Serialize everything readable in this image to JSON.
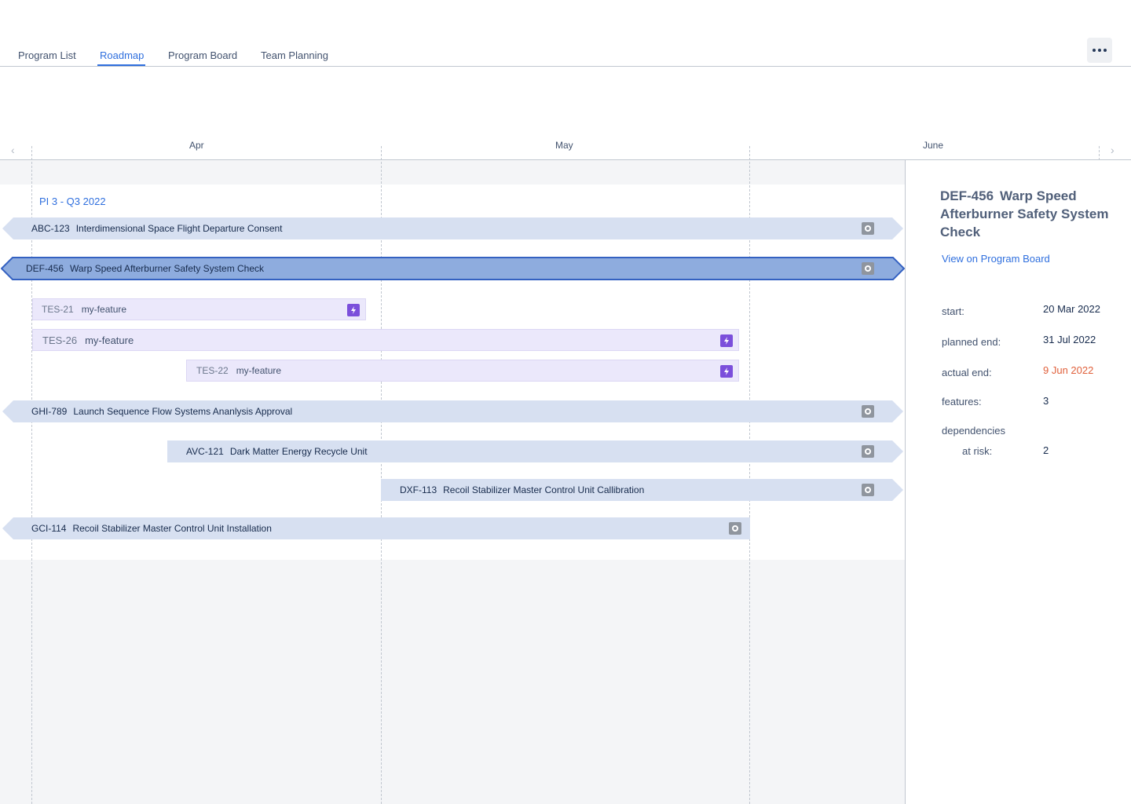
{
  "tabs": [
    {
      "label": "Program List",
      "active": false
    },
    {
      "label": "Roadmap",
      "active": true
    },
    {
      "label": "Program Board",
      "active": false
    },
    {
      "label": "Team Planning",
      "active": false
    }
  ],
  "more_icon": "more-horizontal-icon",
  "timeline": {
    "months": [
      "Apr",
      "May",
      "June"
    ],
    "prev_icon": "chevron-left-icon",
    "next_icon": "chevron-right-icon"
  },
  "increment_label": "PI 3 - Q3 2022",
  "epics": [
    {
      "key": "ABC-123",
      "title": "Interdimensional Space Flight Departure Consent",
      "selected": false
    },
    {
      "key": "DEF-456",
      "title": "Warp Speed Afterburner Safety System Check",
      "selected": true
    },
    {
      "key": "GHI-789",
      "title": "Launch Sequence Flow Systems Ananlysis Approval",
      "selected": false
    },
    {
      "key": "AVC-121",
      "title": "Dark Matter Energy Recycle Unit",
      "selected": false
    },
    {
      "key": "DXF-113",
      "title": "Recoil Stabilizer Master Control Unit Callibration",
      "selected": false
    },
    {
      "key": "GCI-114",
      "title": "Recoil Stabilizer Master Control Unit Installation",
      "selected": false
    }
  ],
  "features": [
    {
      "key": "TES-21",
      "title": "my-feature"
    },
    {
      "key": "TES-26",
      "title": "my-feature"
    },
    {
      "key": "TES-22",
      "title": "my-feature"
    }
  ],
  "panel": {
    "key": "DEF-456",
    "title": "Warp Speed Afterburner Safety System Check",
    "link": "View on Program Board",
    "start_label": "start:",
    "start_value": "20 Mar 2022",
    "planned_end_label": "planned end:",
    "planned_end_value": "31 Jul 2022",
    "actual_end_label": "actual end:",
    "actual_end_value": "9 Jun 2022",
    "features_label": "features:",
    "features_value": "3",
    "dependencies_label": "dependencies",
    "at_risk_label": "at risk:",
    "at_risk_value": "2"
  },
  "colors": {
    "accent": "#2f6fde",
    "epic_bar": "#d7e0f1",
    "epic_selected": "#8eacde",
    "epic_selected_border": "#3461c1",
    "feature_bar": "#ebe8fb",
    "feature_icon": "#7b4fdb",
    "status_icon": "#8f959e",
    "warning": "#e0603b"
  }
}
